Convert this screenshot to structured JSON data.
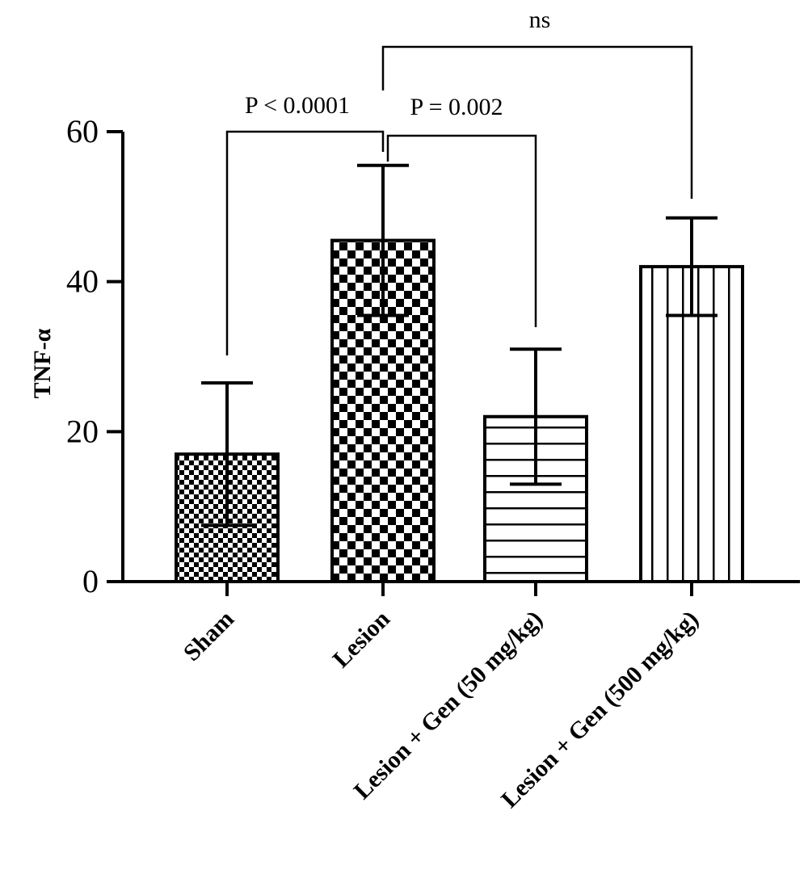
{
  "chart_data": {
    "type": "bar",
    "title": "",
    "xlabel": "",
    "ylabel": "TNF-α",
    "ylim": [
      0,
      60
    ],
    "yticks": [
      0,
      20,
      40,
      60
    ],
    "grid": false,
    "categories": [
      "Sham",
      "Lesion",
      "Lesion + Gen (50 mg/kg)",
      "Lesion + Gen (500 mg/kg)"
    ],
    "values": [
      17,
      45.5,
      22,
      42
    ],
    "error": [
      9.5,
      10,
      9,
      6.5
    ],
    "patterns": [
      "fine-checker",
      "coarse-checker",
      "horizontal-lines",
      "vertical-lines"
    ],
    "annotations": [
      {
        "from": 0,
        "to": 1,
        "text": "P < 0.0001"
      },
      {
        "from": 1,
        "to": 2,
        "text": "P = 0.002"
      },
      {
        "from": 1,
        "to": 3,
        "text": "ns"
      }
    ]
  }
}
